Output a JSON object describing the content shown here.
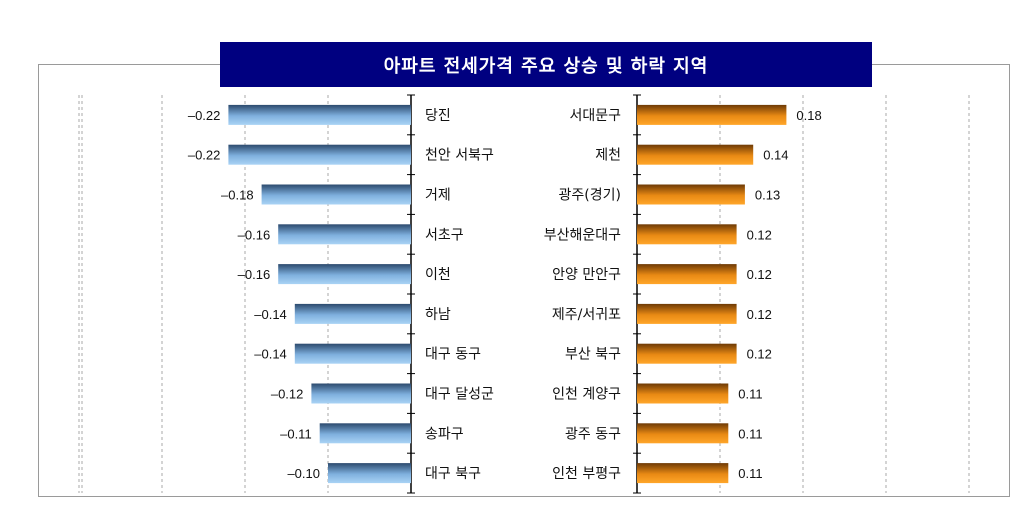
{
  "chart_data": [
    {
      "type": "bar",
      "orientation": "horizontal",
      "title": "아파트 전세가격 주요 상승 및 하락 지역",
      "categories": [
        "당진",
        "천안 서북구",
        "거제",
        "서초구",
        "이천",
        "하남",
        "대구 동구",
        "대구 달성군",
        "송파구",
        "대구 북구"
      ],
      "values": [
        -0.22,
        -0.22,
        -0.18,
        -0.16,
        -0.16,
        -0.14,
        -0.14,
        -0.12,
        -0.11,
        -0.1
      ],
      "value_labels": [
        "–0.22",
        "–0.22",
        "–0.18",
        "–0.16",
        "–0.16",
        "–0.14",
        "–0.14",
        "–0.12",
        "–0.11",
        "–0.10"
      ],
      "xlim": [
        -0.4,
        0
      ],
      "grid": true,
      "color": "#7fb6e6"
    },
    {
      "type": "bar",
      "orientation": "horizontal",
      "categories": [
        "서대문구",
        "제천",
        "광주(경기)",
        "부산해운대구",
        "안양 만안구",
        "제주/서귀포",
        "부산 북구",
        "인천 계양구",
        "광주 동구",
        "인천 부평구"
      ],
      "values": [
        0.18,
        0.14,
        0.13,
        0.12,
        0.12,
        0.12,
        0.12,
        0.11,
        0.11,
        0.11
      ],
      "value_labels": [
        "0.18",
        "0.14",
        "0.13",
        "0.12",
        "0.12",
        "0.12",
        "0.12",
        "0.11",
        "0.11",
        "0.11"
      ],
      "xlim": [
        0,
        0.4
      ],
      "grid": true,
      "color": "#f29a1c"
    }
  ]
}
